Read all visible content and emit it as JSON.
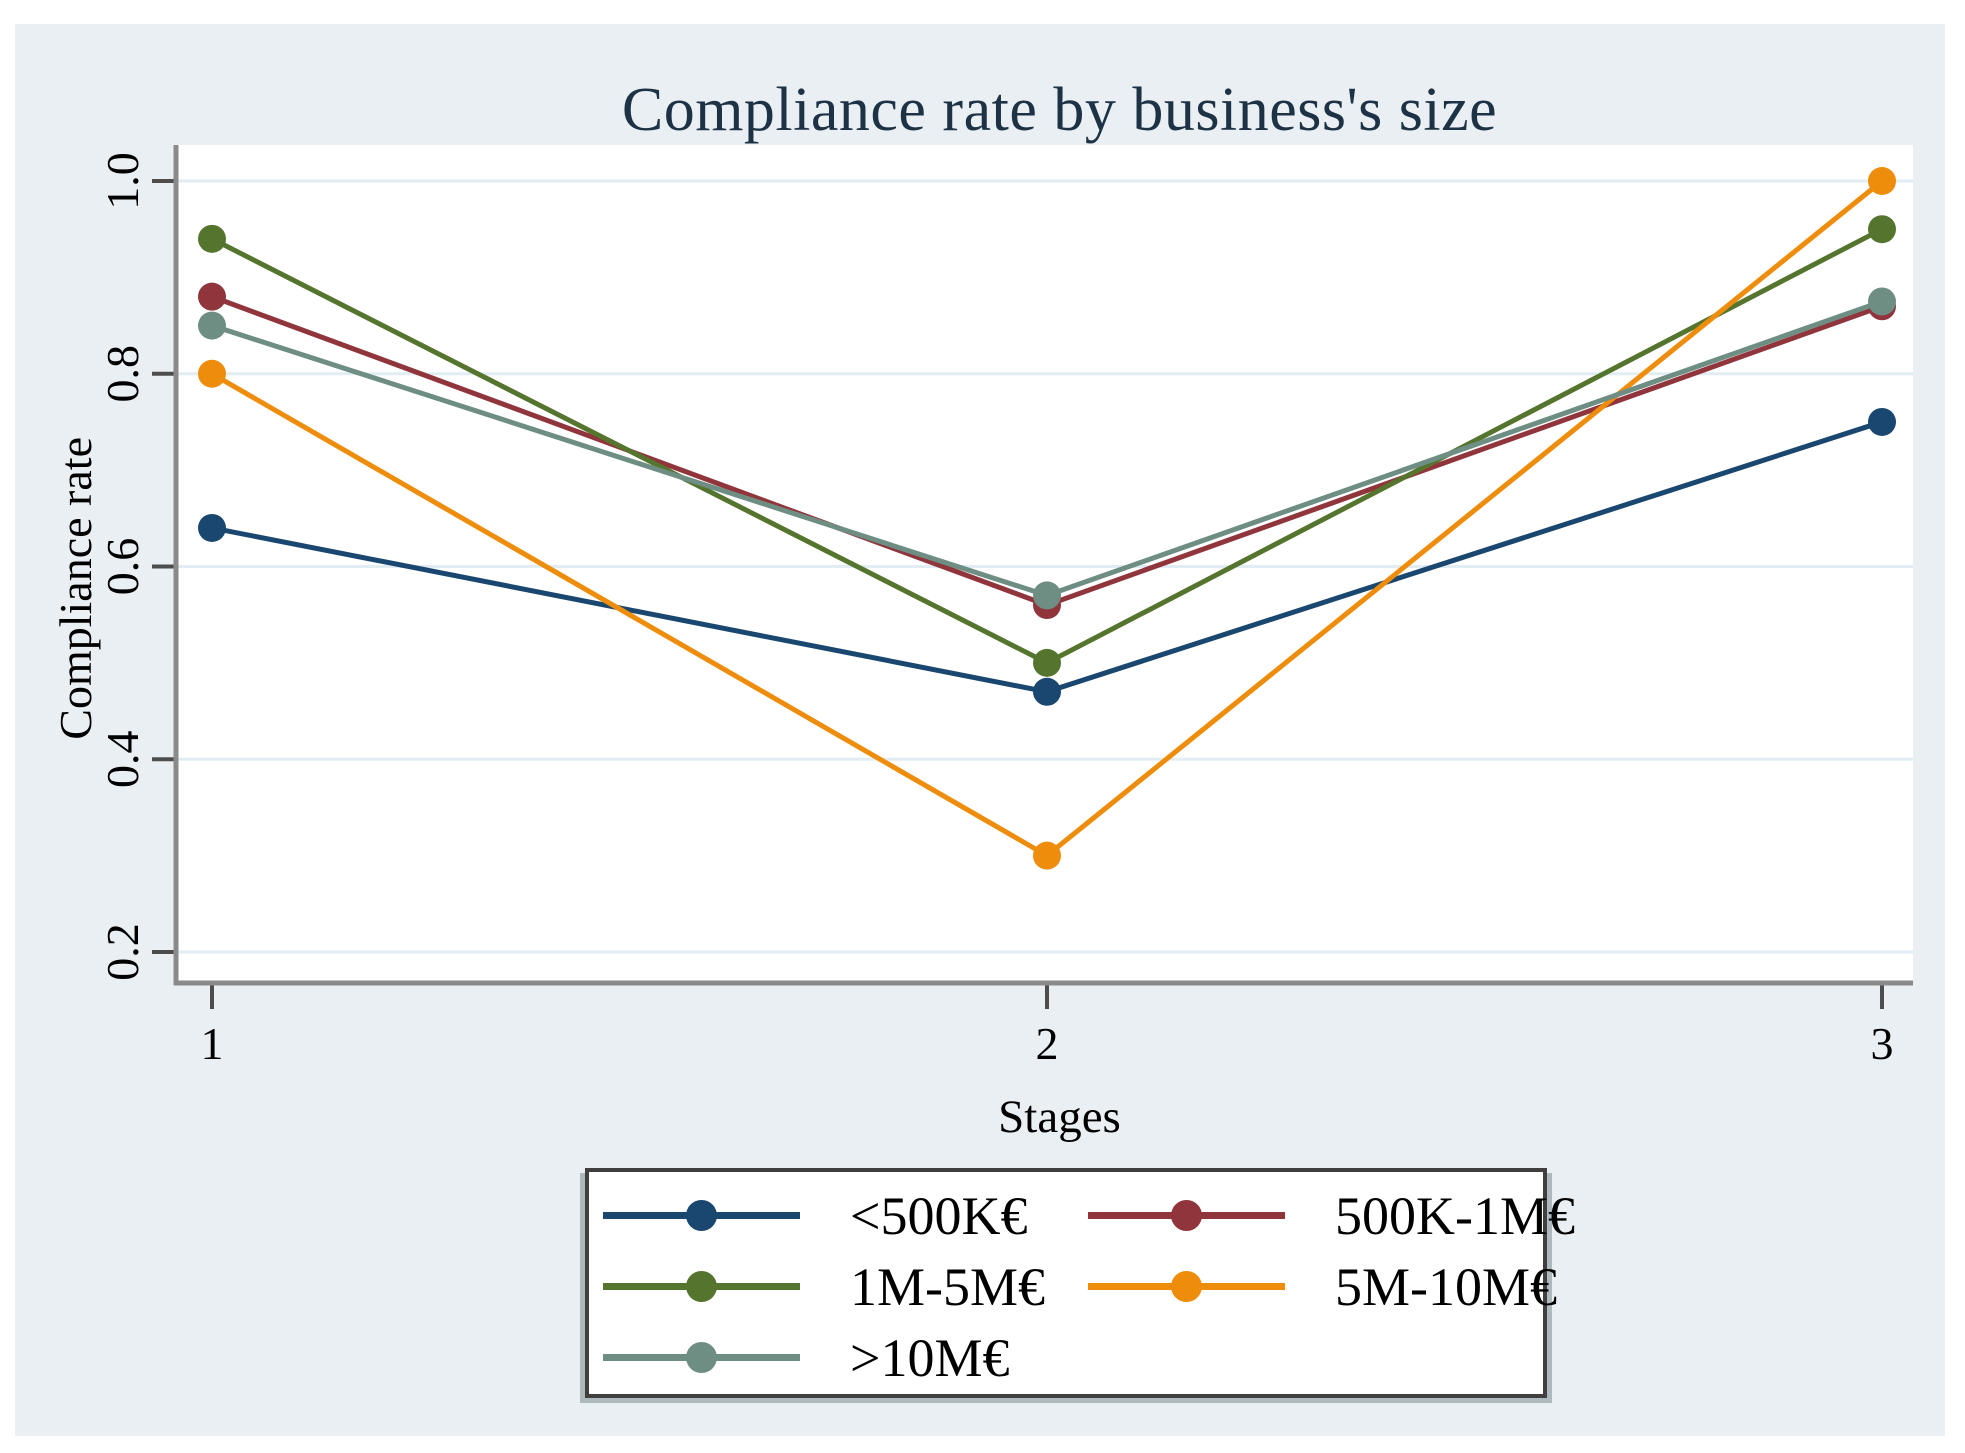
{
  "figure": {
    "title": "Compliance rate by business's size",
    "x_axis_title": "Stages",
    "y_axis_title": "Compliance rate"
  },
  "theme": {
    "figure_background": "#e9eff3",
    "plot_background": "#ffffff",
    "grid_color": "#e2edf3",
    "axis_color": "#8a8a8a",
    "tick_color": "#4d4d4d",
    "title_color": "#1e3246",
    "legend_border_color": "#3f3f3f"
  },
  "chart_data": {
    "type": "line",
    "title": "Compliance rate by business's size",
    "xlabel": "Stages",
    "ylabel": "Compliance rate",
    "x": [
      1,
      2,
      3
    ],
    "xticks": [
      "1",
      "2",
      "3"
    ],
    "yticks": [
      0.2,
      0.4,
      0.6,
      0.8,
      1.0
    ],
    "ytick_labels": [
      "0.2",
      "0.4",
      "0.6",
      "0.8",
      "1.0"
    ],
    "xlim": [
      0.95,
      3.04
    ],
    "ylim": [
      0.17,
      1.06
    ],
    "grid": "horizontal",
    "legend_position": "bottom",
    "marker": "circle",
    "series": [
      {
        "name": "<500K€",
        "color": "#1a476f",
        "values": [
          0.64,
          0.47,
          0.75
        ]
      },
      {
        "name": "500K-1M€",
        "color": "#90353b",
        "values": [
          0.88,
          0.56,
          0.87
        ]
      },
      {
        "name": "1M-5M€",
        "color": "#55752f",
        "values": [
          0.94,
          0.5,
          0.95
        ]
      },
      {
        "name": "5M-10M€",
        "color": "#ee8d0c",
        "values": [
          0.8,
          0.3,
          1.0
        ]
      },
      {
        "name": ">10M€",
        "color": "#6e8e84",
        "values": [
          0.85,
          0.57,
          0.875
        ]
      }
    ]
  }
}
